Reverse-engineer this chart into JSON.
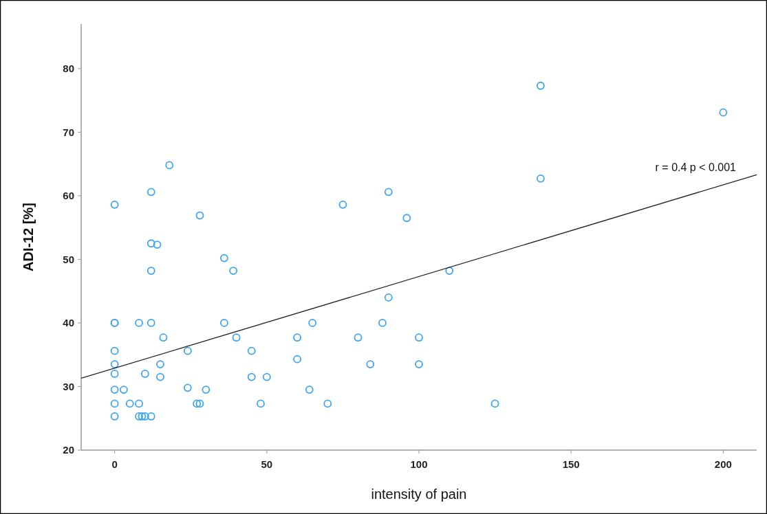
{
  "chart_data": {
    "type": "scatter",
    "xlabel": "intensity of pain",
    "ylabel": "ADI-12 [%]",
    "xlim": [
      -11,
      211
    ],
    "xticks": [
      0,
      50,
      100,
      150,
      200
    ],
    "ylim": [
      20,
      87
    ],
    "yticks": [
      20,
      30,
      40,
      50,
      60,
      70,
      80
    ],
    "grid": false,
    "marker": "circle",
    "series": [
      {
        "color": "#3fa4f0",
        "x": [
          0,
          0,
          0,
          0,
          0,
          0,
          0,
          0,
          0,
          3,
          5,
          8,
          8,
          8,
          9,
          10,
          10,
          12,
          12,
          12,
          12,
          12,
          14,
          15,
          15,
          16,
          18,
          24,
          24,
          27,
          28,
          28,
          30,
          36,
          36,
          39,
          40,
          45,
          45,
          48,
          50,
          60,
          60,
          64,
          65,
          70,
          75,
          80,
          84,
          88,
          90,
          90,
          96,
          100,
          100,
          110,
          125,
          140,
          140,
          200
        ],
        "values": [
          58.6,
          40.0,
          40.0,
          35.6,
          33.5,
          32.0,
          29.5,
          27.3,
          25.3,
          29.5,
          27.3,
          40.0,
          27.3,
          25.3,
          25.3,
          25.3,
          32.0,
          60.6,
          52.5,
          48.2,
          40.0,
          25.3,
          52.3,
          33.5,
          31.5,
          37.7,
          64.8,
          35.6,
          29.8,
          27.3,
          27.3,
          56.9,
          29.5,
          50.2,
          40.0,
          48.2,
          37.7,
          35.6,
          31.5,
          27.3,
          31.5,
          37.7,
          34.3,
          29.5,
          40.0,
          27.3,
          58.6,
          37.7,
          33.5,
          40.0,
          44.0,
          60.6,
          56.5,
          37.7,
          33.5,
          48.2,
          27.3,
          77.3,
          62.7,
          73.1
        ]
      },
      {
        "type": "line",
        "color": "#222222",
        "x": [
          -11,
          211
        ],
        "values": [
          31.3,
          63.3
        ],
        "marker": "none"
      }
    ],
    "annotations": [
      "r = 0.4 p < 0.001"
    ]
  }
}
